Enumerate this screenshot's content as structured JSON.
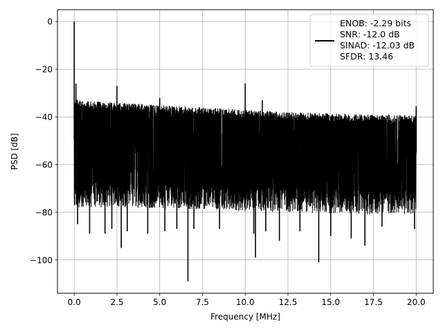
{
  "chart_data": {
    "type": "line",
    "xlabel": "Frequency [MHz]",
    "ylabel": "PSD [dB]",
    "xlim": [
      -0.98,
      21.0
    ],
    "ylim": [
      -114,
      5
    ],
    "x_ticks": [
      0.0,
      2.5,
      5.0,
      7.5,
      10.0,
      12.5,
      15.0,
      17.5,
      20.0
    ],
    "x_tick_labels": [
      "0.0",
      "2.5",
      "5.0",
      "7.5",
      "10.0",
      "12.5",
      "15.0",
      "17.5",
      "20.0"
    ],
    "y_ticks": [
      0,
      -20,
      -40,
      -60,
      -80,
      -100
    ],
    "y_tick_labels": [
      "0",
      "−20",
      "−40",
      "−60",
      "−80",
      "−100"
    ],
    "grid": true,
    "legend_placement": "top-right",
    "legend_lines": [
      "ENOB: -2.29 bits",
      "SNR: -12.0 dB",
      "SINAD: -12.03 dB",
      "SFDR: 13.46"
    ],
    "line_color": "#000000",
    "series": [
      {
        "band": {
          "x": [
            0.0,
            0.2,
            2.5,
            5.0,
            7.5,
            10.0,
            12.5,
            15.0,
            17.5,
            20.0
          ],
          "upper": [
            -31,
            -33,
            -34,
            -35,
            -36,
            -37,
            -38,
            -38.5,
            -39,
            -39
          ],
          "lower": [
            -68,
            -68,
            -68,
            -68.5,
            -69,
            -69.5,
            -70,
            -70.5,
            -71,
            -71
          ]
        },
        "spikes": [
          {
            "x": 0.0,
            "y": 0
          },
          {
            "x": 0.1,
            "y": -26
          },
          {
            "x": 2.5,
            "y": -27
          },
          {
            "x": 10.0,
            "y": -26
          },
          {
            "x": 5.0,
            "y": -32
          },
          {
            "x": 11.0,
            "y": -33
          },
          {
            "x": 20.0,
            "y": -35.5
          }
        ],
        "dips": [
          {
            "x": 0.02,
            "y": -77
          },
          {
            "x": 0.2,
            "y": -85
          },
          {
            "x": 0.9,
            "y": -89
          },
          {
            "x": 1.8,
            "y": -89
          },
          {
            "x": 2.2,
            "y": -87
          },
          {
            "x": 2.75,
            "y": -95
          },
          {
            "x": 3.1,
            "y": -88
          },
          {
            "x": 4.3,
            "y": -89
          },
          {
            "x": 5.3,
            "y": -88
          },
          {
            "x": 6.0,
            "y": -87
          },
          {
            "x": 6.65,
            "y": -109
          },
          {
            "x": 7.0,
            "y": -87
          },
          {
            "x": 8.5,
            "y": -87
          },
          {
            "x": 10.5,
            "y": -89
          },
          {
            "x": 10.6,
            "y": -99
          },
          {
            "x": 11.2,
            "y": -88
          },
          {
            "x": 12.0,
            "y": -92
          },
          {
            "x": 13.2,
            "y": -88
          },
          {
            "x": 14.3,
            "y": -101
          },
          {
            "x": 15.0,
            "y": -90
          },
          {
            "x": 16.2,
            "y": -91
          },
          {
            "x": 17.0,
            "y": -94
          },
          {
            "x": 18.0,
            "y": -86
          },
          {
            "x": 19.9,
            "y": -87
          }
        ]
      }
    ]
  }
}
